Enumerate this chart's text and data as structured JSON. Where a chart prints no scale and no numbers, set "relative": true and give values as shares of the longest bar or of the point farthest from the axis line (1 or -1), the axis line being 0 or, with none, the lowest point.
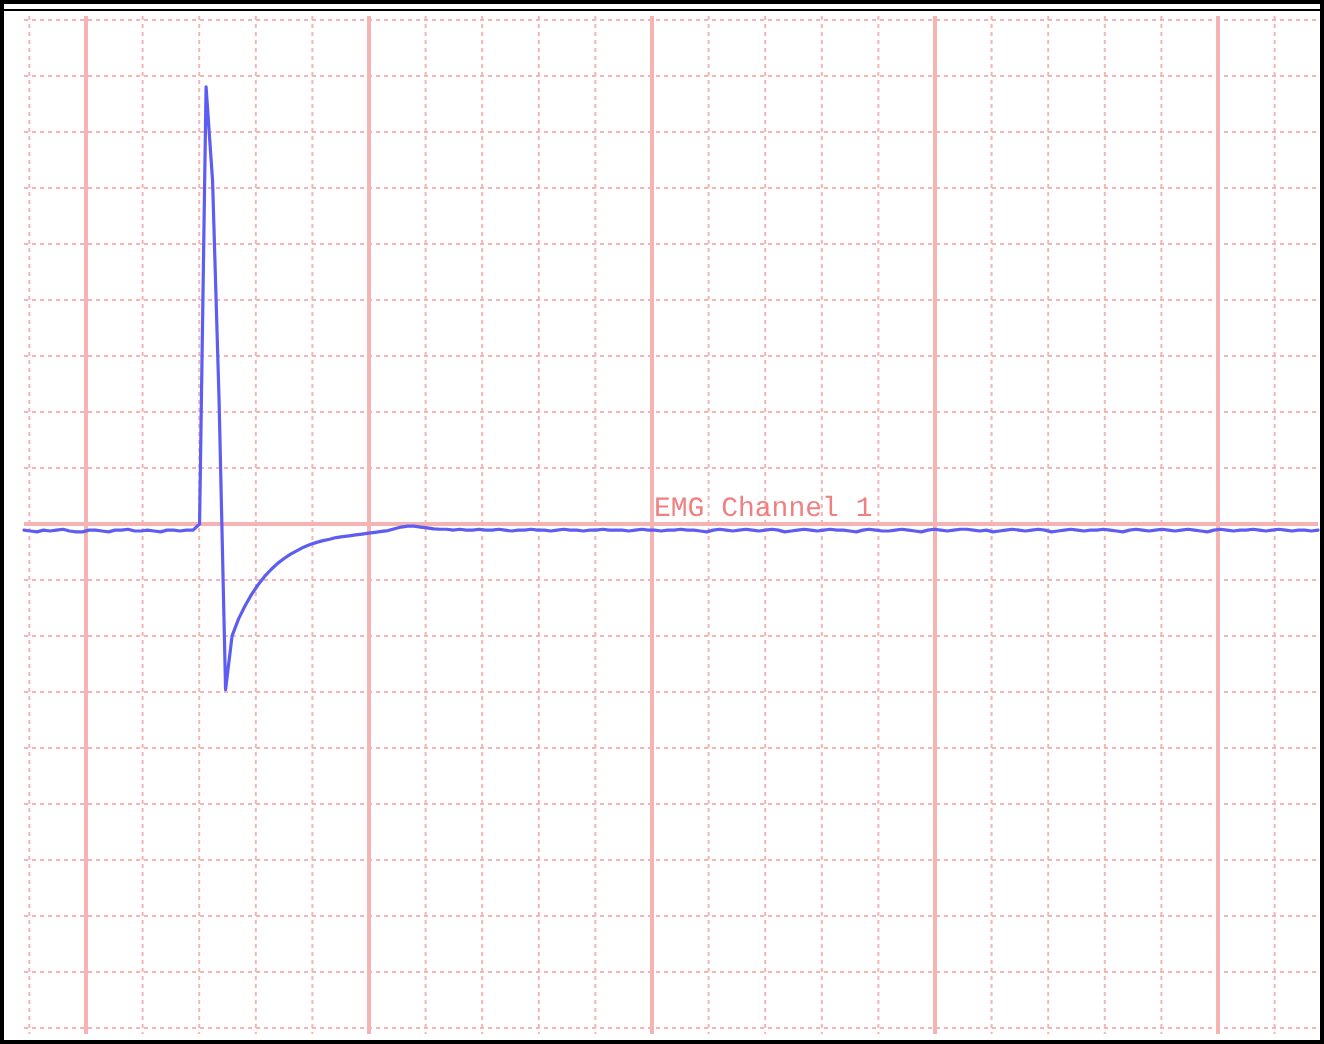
{
  "chart_data": {
    "type": "line",
    "relative": true,
    "grid": true,
    "marker": "none",
    "line_style": "solid",
    "categories": [
      null,
      null,
      null,
      null,
      null,
      null,
      null,
      null,
      null,
      null,
      null,
      null,
      null,
      null,
      null,
      null,
      null,
      null,
      null,
      null,
      null,
      null,
      null,
      null,
      null,
      null,
      null,
      null,
      null,
      null,
      null,
      null,
      null,
      null,
      null,
      null,
      null,
      null,
      null,
      null,
      null,
      null,
      null,
      null,
      null,
      null,
      null,
      null,
      null,
      null,
      null,
      null,
      null,
      null,
      null,
      null,
      null,
      null,
      null,
      null,
      null,
      null,
      null,
      null,
      null,
      null,
      null,
      null,
      null,
      null,
      null,
      null,
      null,
      null,
      null,
      null,
      null,
      null,
      null,
      null,
      null,
      null,
      null,
      null,
      null,
      null,
      null,
      null,
      null,
      null,
      null,
      null,
      null,
      null,
      null,
      null,
      null,
      null,
      null,
      null,
      null,
      null,
      null,
      null,
      null,
      null,
      null,
      null,
      null,
      null,
      null,
      null,
      null,
      null,
      null,
      null,
      null,
      null,
      null,
      null,
      null,
      null,
      null,
      null,
      null,
      null,
      null,
      null,
      null,
      null,
      null,
      null,
      null,
      null,
      null,
      null,
      null,
      null,
      null,
      null,
      null,
      null,
      null,
      null,
      null,
      null,
      null,
      null,
      null,
      null,
      null,
      null,
      null,
      null,
      null,
      null,
      null,
      null,
      null,
      null,
      null,
      null,
      null,
      null,
      null,
      null,
      null,
      null,
      null,
      null,
      null,
      null,
      null,
      null,
      null,
      null,
      null,
      null,
      null,
      null,
      null,
      null,
      null,
      null,
      null,
      null,
      null,
      null,
      null,
      null,
      null,
      null,
      null,
      null,
      null,
      null,
      null,
      null,
      null,
      null
    ],
    "series": [
      {
        "name": "EMG Channel 1",
        "color": "#5d5df2",
        "values": [
          -0.014,
          -0.016,
          -0.018,
          -0.014,
          -0.016,
          -0.014,
          -0.012,
          -0.016,
          -0.018,
          -0.018,
          -0.014,
          -0.014,
          -0.016,
          -0.018,
          -0.014,
          -0.014,
          -0.012,
          -0.016,
          -0.016,
          -0.014,
          -0.016,
          -0.018,
          -0.014,
          -0.014,
          -0.016,
          -0.014,
          -0.014,
          0.0,
          1.0,
          0.785,
          0.283,
          -0.379,
          -0.256,
          -0.217,
          -0.187,
          -0.161,
          -0.139,
          -0.12,
          -0.104,
          -0.09,
          -0.079,
          -0.069,
          -0.061,
          -0.053,
          -0.047,
          -0.042,
          -0.038,
          -0.035,
          -0.031,
          -0.029,
          -0.027,
          -0.025,
          -0.023,
          -0.021,
          -0.019,
          -0.017,
          -0.015,
          -0.011,
          -0.007,
          -0.005,
          -0.005,
          -0.007,
          -0.009,
          -0.011,
          -0.012,
          -0.012,
          -0.014,
          -0.012,
          -0.014,
          -0.014,
          -0.012,
          -0.014,
          -0.014,
          -0.012,
          -0.014,
          -0.016,
          -0.014,
          -0.014,
          -0.012,
          -0.014,
          -0.014,
          -0.016,
          -0.014,
          -0.012,
          -0.014,
          -0.014,
          -0.016,
          -0.014,
          -0.014,
          -0.012,
          -0.014,
          -0.014,
          -0.014,
          -0.016,
          -0.014,
          -0.012,
          -0.014,
          -0.014,
          -0.016,
          -0.014,
          -0.014,
          -0.012,
          -0.014,
          -0.014,
          -0.016,
          -0.018,
          -0.014,
          -0.012,
          -0.014,
          -0.016,
          -0.014,
          -0.012,
          -0.014,
          -0.016,
          -0.014,
          -0.012,
          -0.014,
          -0.018,
          -0.016,
          -0.014,
          -0.012,
          -0.014,
          -0.016,
          -0.014,
          -0.012,
          -0.014,
          -0.014,
          -0.016,
          -0.018,
          -0.014,
          -0.012,
          -0.014,
          -0.016,
          -0.016,
          -0.014,
          -0.012,
          -0.014,
          -0.016,
          -0.018,
          -0.014,
          -0.012,
          -0.014,
          -0.016,
          -0.014,
          -0.012,
          -0.012,
          -0.014,
          -0.016,
          -0.014,
          -0.018,
          -0.016,
          -0.014,
          -0.012,
          -0.014,
          -0.016,
          -0.014,
          -0.012,
          -0.014,
          -0.018,
          -0.016,
          -0.014,
          -0.012,
          -0.014,
          -0.016,
          -0.014,
          -0.014,
          -0.012,
          -0.014,
          -0.016,
          -0.018,
          -0.014,
          -0.012,
          -0.014,
          -0.016,
          -0.014,
          -0.012,
          -0.014,
          -0.016,
          -0.014,
          -0.012,
          -0.014,
          -0.016,
          -0.018,
          -0.014,
          -0.012,
          -0.014,
          -0.016,
          -0.014,
          -0.014,
          -0.012,
          -0.014,
          -0.016,
          -0.014,
          -0.012,
          -0.014,
          -0.016,
          -0.014,
          -0.014,
          -0.016,
          -0.014
        ]
      }
    ]
  }
}
